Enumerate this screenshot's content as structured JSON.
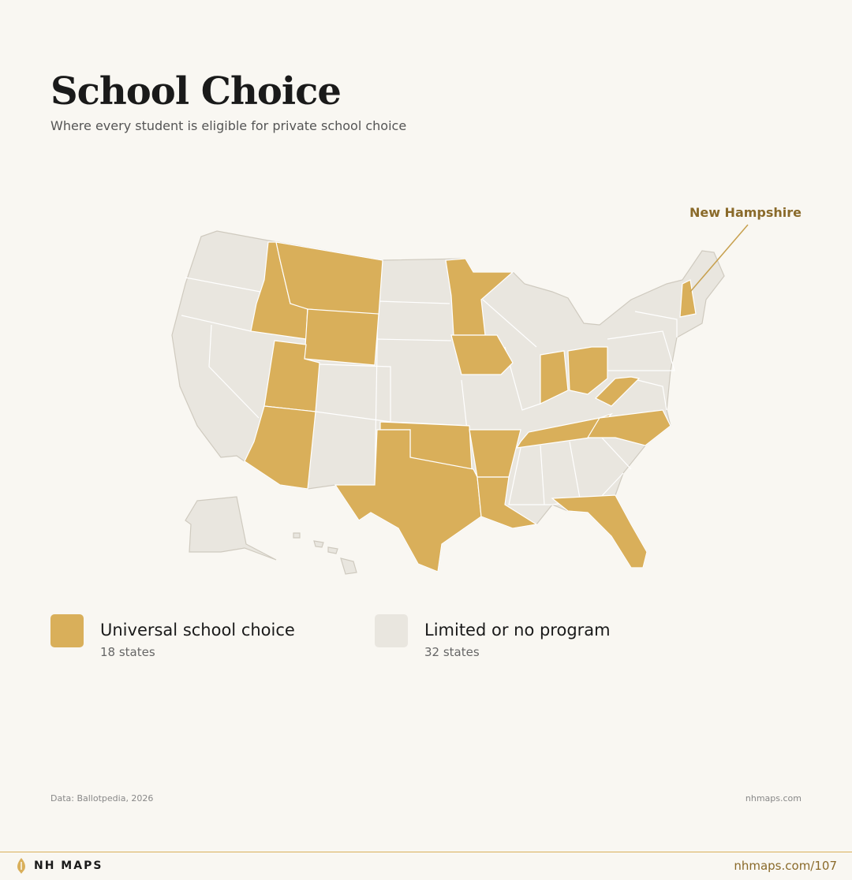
{
  "header": {
    "title": "School Choice",
    "subtitle": "Where every student is eligible for private school choice"
  },
  "map": {
    "annotation": "New Hampshire"
  },
  "legend": [
    {
      "label": "Universal school choice",
      "count": "18 states",
      "color": "#d9af5a"
    },
    {
      "label": "Limited or no program",
      "count": "32 states",
      "color": "#e9e6df"
    }
  ],
  "footer": {
    "source": "Data: Ballotpedia, 2026",
    "site": "nhmaps.com",
    "brand": "NH MAPS",
    "link": "nhmaps.com/107"
  }
}
